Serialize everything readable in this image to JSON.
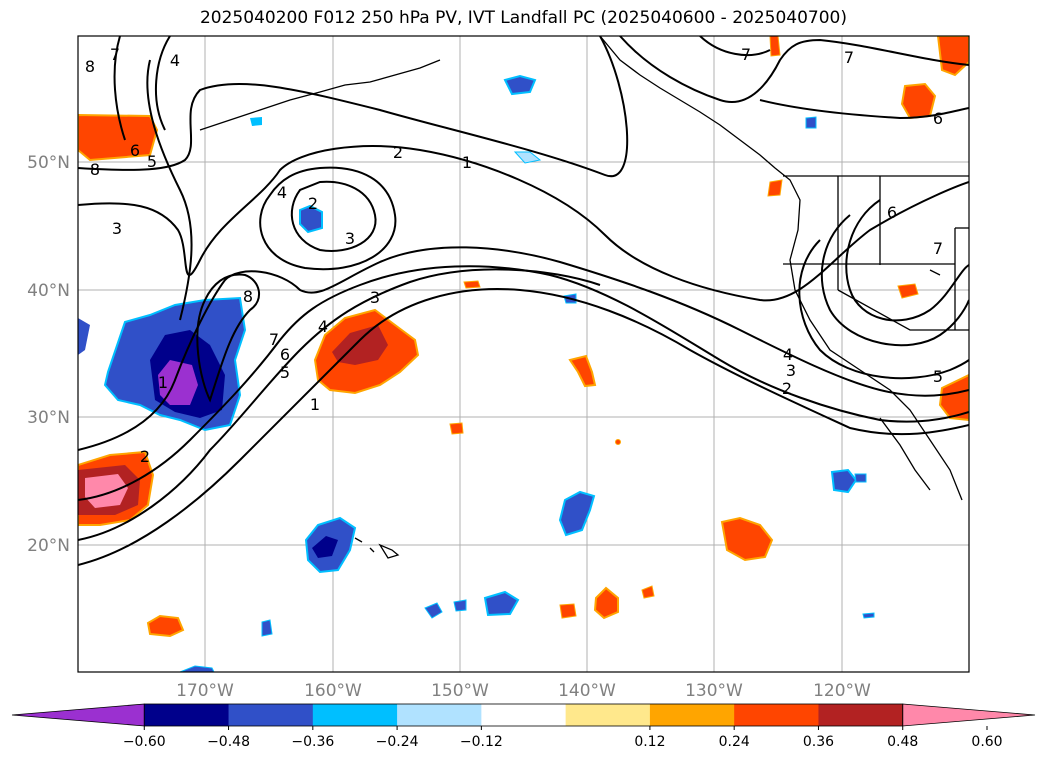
{
  "title": "2025040200 F012 250 hPa PV, IVT Landfall PC (2025040600 - 2025040700)",
  "map": {
    "lat_labels": [
      "50°N",
      "40°N",
      "30°N",
      "20°N"
    ],
    "lon_labels": [
      "170°W",
      "160°W",
      "150°W",
      "140°W",
      "130°W",
      "120°W"
    ],
    "grid": true,
    "contour_color": "#000000",
    "contour_labels": [
      {
        "text": "8",
        "where": "nw-top"
      },
      {
        "text": "7",
        "where": "nw-top"
      },
      {
        "text": "4",
        "where": "nw-top"
      },
      {
        "text": "6",
        "where": "nw"
      },
      {
        "text": "5",
        "where": "nw"
      },
      {
        "text": "8",
        "where": "nw-edge"
      },
      {
        "text": "2",
        "where": "central-north"
      },
      {
        "text": "1",
        "where": "central-north"
      },
      {
        "text": "4",
        "where": "central-low"
      },
      {
        "text": "2",
        "where": "central-low"
      },
      {
        "text": "3",
        "where": "central-low"
      },
      {
        "text": "3",
        "where": "west"
      },
      {
        "text": "8",
        "where": "west-center"
      },
      {
        "text": "3",
        "where": "central"
      },
      {
        "text": "4",
        "where": "central"
      },
      {
        "text": "7",
        "where": "west-center"
      },
      {
        "text": "6",
        "where": "west-center"
      },
      {
        "text": "5",
        "where": "west-center"
      },
      {
        "text": "1",
        "where": "central-south"
      },
      {
        "text": "1",
        "where": "west-south"
      },
      {
        "text": "2",
        "where": "west-south"
      },
      {
        "text": "7",
        "where": "ne-top"
      },
      {
        "text": "7",
        "where": "ne-top"
      },
      {
        "text": "6",
        "where": "ne"
      },
      {
        "text": "6",
        "where": "east"
      },
      {
        "text": "7",
        "where": "east"
      },
      {
        "text": "4",
        "where": "east-south"
      },
      {
        "text": "3",
        "where": "east-south"
      },
      {
        "text": "2",
        "where": "east-south"
      },
      {
        "text": "5",
        "where": "east-south"
      }
    ]
  },
  "colorbar": {
    "ticks": [
      "−0.60",
      "−0.48",
      "−0.36",
      "−0.24",
      "−0.12",
      "0.12",
      "0.24",
      "0.36",
      "0.48",
      "0.60"
    ],
    "colors": [
      "#9b30d0",
      "#00008b",
      "#3050c8",
      "#00bfff",
      "#b0e2ff",
      "#ffffff",
      "#ffe88c",
      "#ffa500",
      "#ff4500",
      "#b22222",
      "#ff88aa"
    ],
    "extend": "both"
  }
}
